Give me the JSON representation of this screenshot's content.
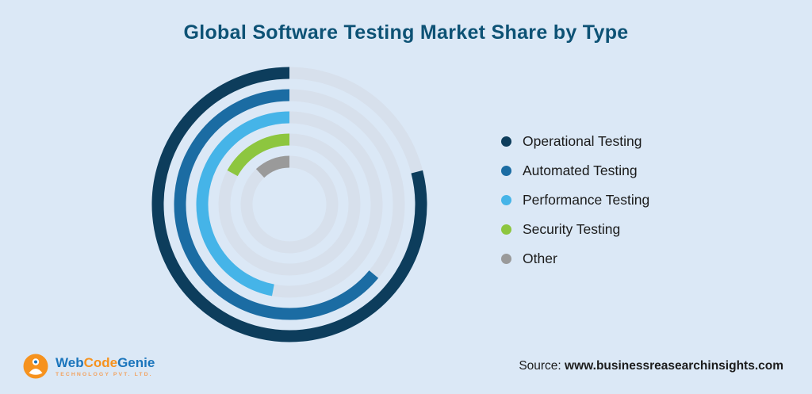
{
  "title": "Global Software Testing Market Share by Type",
  "chart_data": {
    "type": "radial_bar",
    "categories": [
      "Operational Testing",
      "Automated Testing",
      "Performance Testing",
      "Security Testing",
      "Other"
    ],
    "values": [
      79,
      64,
      47,
      17,
      12
    ],
    "value_unit": "percent_of_full_circle_estimated",
    "colors": [
      "#0d3d5c",
      "#1b6ca3",
      "#45b4e8",
      "#8dc63f",
      "#9a9a9a"
    ],
    "track_color": "#d7e0ec",
    "start_position": "top",
    "direction": "counterclockwise",
    "legend_position": "right",
    "title": "Global Software Testing Market Share by Type"
  },
  "logo": {
    "name_part1": "Web",
    "name_part2": "Code",
    "name_part3": "Genie",
    "tagline": "TECHNOLOGY PVT. LTD.",
    "icon": "genie-in-orange-circle"
  },
  "source": {
    "label": "Source:",
    "url": "www.businessreasearchinsights.com"
  }
}
